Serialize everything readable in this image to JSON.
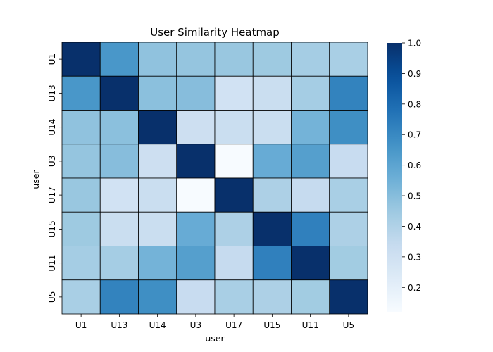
{
  "chart_data": {
    "type": "heatmap",
    "title": "User Similarity Heatmap",
    "xlabel": "user",
    "ylabel": "user",
    "x_categories": [
      "U1",
      "U13",
      "U14",
      "U3",
      "U17",
      "U15",
      "U11",
      "U5"
    ],
    "y_categories": [
      "U1",
      "U13",
      "U14",
      "U3",
      "U17",
      "U15",
      "U11",
      "U5"
    ],
    "values": [
      [
        1.0,
        0.65,
        0.48,
        0.47,
        0.46,
        0.45,
        0.43,
        0.42
      ],
      [
        0.65,
        1.0,
        0.49,
        0.5,
        0.29,
        0.32,
        0.43,
        0.72
      ],
      [
        0.48,
        0.49,
        1.0,
        0.31,
        0.32,
        0.32,
        0.54,
        0.68
      ],
      [
        0.47,
        0.5,
        0.31,
        1.0,
        0.12,
        0.57,
        0.62,
        0.33
      ],
      [
        0.46,
        0.29,
        0.32,
        0.12,
        1.0,
        0.41,
        0.34,
        0.42
      ],
      [
        0.45,
        0.32,
        0.32,
        0.57,
        0.41,
        1.0,
        0.73,
        0.41
      ],
      [
        0.43,
        0.43,
        0.54,
        0.62,
        0.34,
        0.73,
        1.0,
        0.44
      ],
      [
        0.42,
        0.72,
        0.68,
        0.33,
        0.42,
        0.41,
        0.44,
        1.0
      ]
    ],
    "colormap": "Blues",
    "colorbar": {
      "range": [
        0.12,
        1.0
      ],
      "ticks": [
        0.2,
        0.3,
        0.4,
        0.5,
        0.6,
        0.7,
        0.8,
        0.9,
        1.0
      ],
      "tick_labels": [
        "0.2",
        "0.3",
        "0.4",
        "0.5",
        "0.6",
        "0.7",
        "0.8",
        "0.9",
        "1.0"
      ]
    },
    "cell_border_color": "#000000",
    "grid": false
  }
}
